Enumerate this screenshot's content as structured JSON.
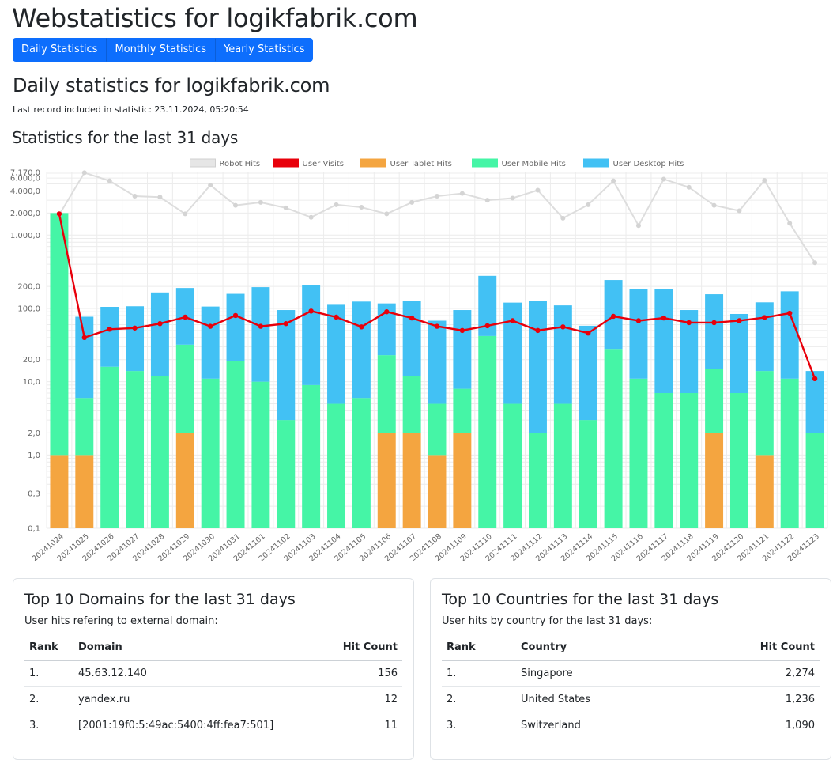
{
  "header": {
    "title": "Webstatistics for logikfabrik.com"
  },
  "nav": {
    "daily": "Daily Statistics",
    "monthly": "Monthly Statistics",
    "yearly": "Yearly Statistics"
  },
  "daily": {
    "title": "Daily statistics for logikfabrik.com",
    "last_record": "Last record included in statistic: 23.11.2024, 05:20:54",
    "chart_title": "Statistics for the last 31 days"
  },
  "colors": {
    "robot": "#dddddd",
    "visits": "#e8000b",
    "tablet": "#f4a540",
    "mobile": "#45f5a6",
    "desktop": "#42c1f4",
    "primary": "#0d6efd"
  },
  "chart_data": {
    "type": "bar",
    "stacked": true,
    "log_scale": true,
    "ylim": [
      0.1,
      7170
    ],
    "y_ticks": [
      7170,
      6000,
      4000,
      2000,
      1000,
      200,
      100,
      20,
      10,
      2,
      1,
      0.3,
      0.1
    ],
    "y_tick_labels": [
      "7.170,0",
      "6.000,0",
      "4.000,0",
      "2.000,0",
      "1.000,0",
      "200,0",
      "100,0",
      "20,0",
      "10,0",
      "2,0",
      "1,0",
      "0,3",
      "0,1"
    ],
    "legend_position": "top",
    "categories": [
      "20241024",
      "20241025",
      "20241026",
      "20241027",
      "20241028",
      "20241029",
      "20241030",
      "20241031",
      "20241101",
      "20241102",
      "20241103",
      "20241104",
      "20241105",
      "20241106",
      "20241107",
      "20241108",
      "20241109",
      "20241110",
      "20241111",
      "20241112",
      "20241113",
      "20241114",
      "20241115",
      "20241116",
      "20241117",
      "20241118",
      "20241119",
      "20241120",
      "20241121",
      "20241122",
      "20241123"
    ],
    "series": [
      {
        "name": "Robot Hits",
        "type": "line",
        "color": "#dddddd",
        "values": [
          1900,
          7100,
          5500,
          3400,
          3300,
          1950,
          4800,
          2550,
          2800,
          2350,
          1750,
          2600,
          2400,
          1950,
          2800,
          3400,
          3700,
          3000,
          3200,
          4100,
          1700,
          2600,
          5500,
          1350,
          5800,
          4500,
          2550,
          2150,
          5600,
          1450,
          420
        ]
      },
      {
        "name": "User Visits",
        "type": "line",
        "color": "#e8000b",
        "values": [
          1950,
          40,
          52,
          54,
          62,
          76,
          57,
          80,
          57,
          62,
          92,
          76,
          56,
          90,
          74,
          57,
          50,
          58,
          68,
          50,
          56,
          46,
          78,
          68,
          74,
          64,
          64,
          68,
          75,
          86,
          11
        ]
      },
      {
        "name": "User Tablet Hits",
        "type": "bar",
        "color": "#f4a540",
        "values": [
          1,
          1,
          0,
          0,
          0,
          2,
          0,
          0,
          0,
          0,
          0,
          0,
          0,
          2,
          2,
          1,
          2,
          0,
          0,
          0,
          0,
          0,
          0,
          0,
          0,
          0,
          2,
          0,
          1,
          0,
          0
        ]
      },
      {
        "name": "User Mobile Hits",
        "type": "bar",
        "color": "#45f5a6",
        "values": [
          2000,
          5,
          16,
          14,
          12,
          30,
          11,
          19,
          10,
          3,
          9,
          5,
          6,
          21,
          10,
          4,
          6,
          42,
          5,
          2,
          5,
          3,
          28,
          11,
          7,
          7,
          13,
          7,
          13,
          11,
          2
        ]
      },
      {
        "name": "User Desktop Hits",
        "type": "bar",
        "color": "#42c1f4",
        "values": [
          0,
          71,
          89,
          93,
          153,
          158,
          95,
          139,
          185,
          92,
          198,
          107,
          118,
          94,
          113,
          63,
          87,
          236,
          115,
          124,
          105,
          55,
          216,
          171,
          177,
          88,
          141,
          77,
          107,
          160,
          12
        ]
      }
    ]
  },
  "domains": {
    "title": "Top 10 Domains for the last 31 days",
    "subtitle": "User hits refering to external domain:",
    "columns": [
      "Rank",
      "Domain",
      "Hit Count"
    ],
    "rows": [
      [
        "1.",
        "45.63.12.140",
        "156"
      ],
      [
        "2.",
        "yandex.ru",
        "12"
      ],
      [
        "3.",
        "[2001:19f0:5:49ac:5400:4ff:fea7:501]",
        "11"
      ]
    ]
  },
  "countries": {
    "title": "Top 10 Countries for the last 31 days",
    "subtitle": "User hits by country for the last 31 days:",
    "columns": [
      "Rank",
      "Country",
      "Hit Count"
    ],
    "rows": [
      [
        "1.",
        "Singapore",
        "2,274"
      ],
      [
        "2.",
        "United States",
        "1,236"
      ],
      [
        "3.",
        "Switzerland",
        "1,090"
      ]
    ]
  }
}
